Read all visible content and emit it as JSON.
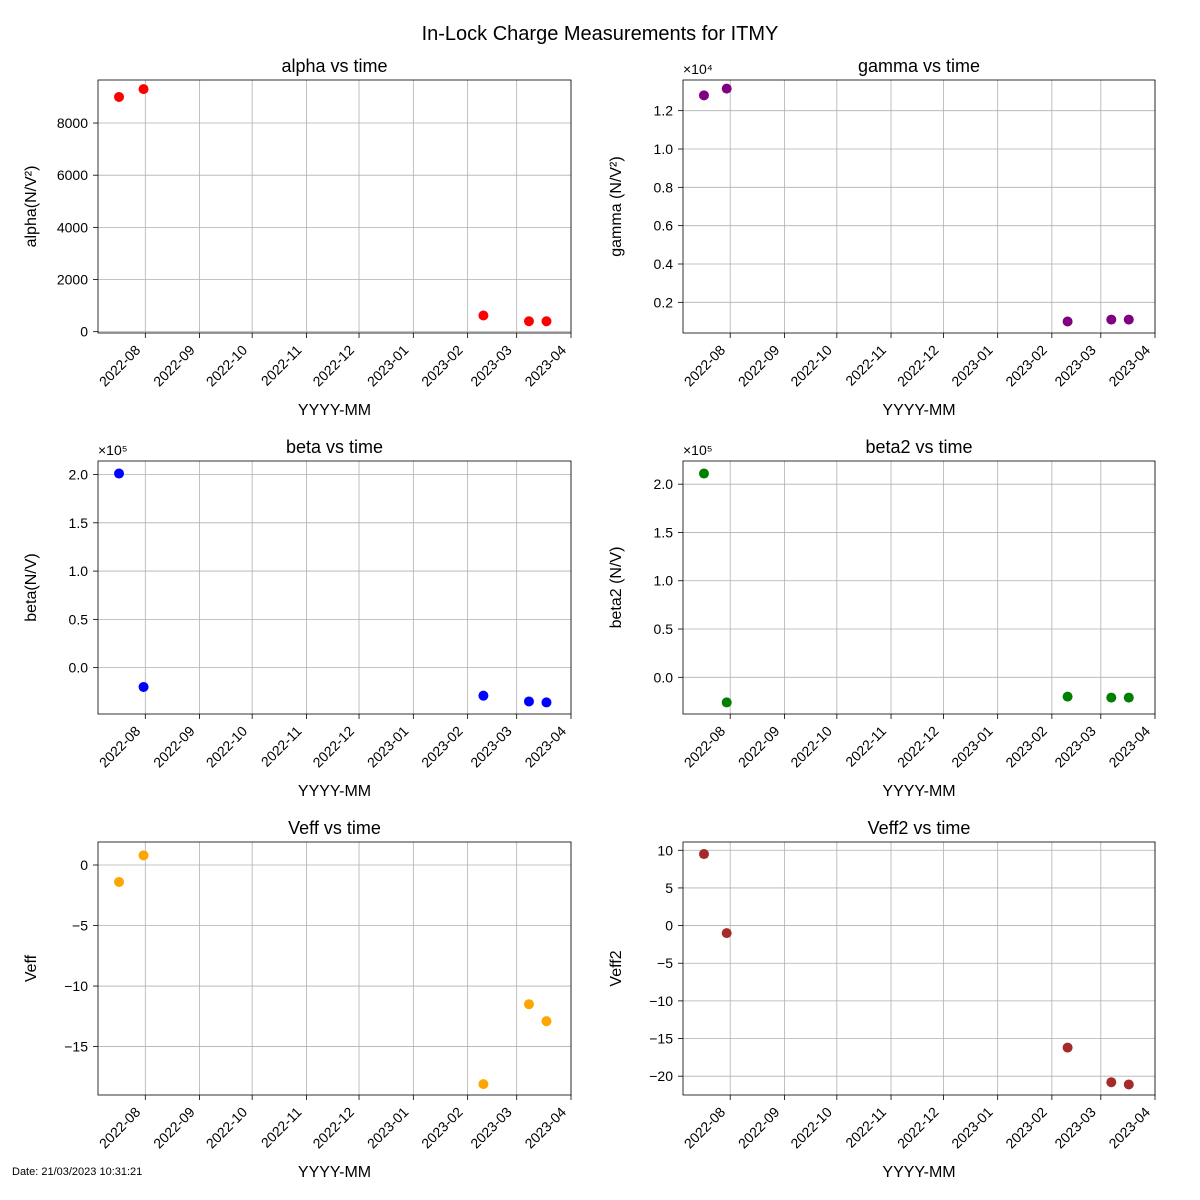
{
  "figure": {
    "title": "In-Lock Charge Measurements for ITMY",
    "date_stamp": "Date: 21/03/2023 10:31:21"
  },
  "chart_data": [
    {
      "type": "scatter",
      "title": "alpha vs time",
      "xlabel": "YYYY-MM",
      "ylabel": "alpha(N/V²)",
      "multiplier": "",
      "color": "#ff0000",
      "xlim": [
        "2022-07-05",
        "2023-04-01"
      ],
      "ylim": [
        -50,
        9650
      ],
      "yticks": [
        0,
        2000,
        4000,
        6000,
        8000
      ],
      "ytick_labels": [
        "0",
        "2000",
        "4000",
        "6000",
        "8000"
      ],
      "xticks": [
        "2022-08",
        "2022-09",
        "2022-10",
        "2022-11",
        "2022-12",
        "2023-01",
        "2023-02",
        "2023-03",
        "2023-04"
      ],
      "x": [
        "2022-07-17",
        "2022-07-31",
        "2023-02-10",
        "2023-03-08",
        "2023-03-18"
      ],
      "y": [
        9000,
        9300,
        620,
        400,
        400
      ]
    },
    {
      "type": "scatter",
      "title": "gamma vs time",
      "xlabel": "YYYY-MM",
      "ylabel": "gamma (N/V²)",
      "multiplier": "×10⁴",
      "color": "#800080",
      "xlim": [
        "2022-07-05",
        "2023-04-01"
      ],
      "ylim": [
        400,
        13600
      ],
      "yticks": [
        2000,
        4000,
        6000,
        8000,
        10000,
        12000
      ],
      "ytick_labels": [
        "0.2",
        "0.4",
        "0.6",
        "0.8",
        "1.0",
        "1.2"
      ],
      "xticks": [
        "2022-08",
        "2022-09",
        "2022-10",
        "2022-11",
        "2022-12",
        "2023-01",
        "2023-02",
        "2023-03",
        "2023-04"
      ],
      "x": [
        "2022-07-17",
        "2022-07-30",
        "2023-02-10",
        "2023-03-07",
        "2023-03-17"
      ],
      "y": [
        12800,
        13150,
        1000,
        1100,
        1100
      ]
    },
    {
      "type": "scatter",
      "title": "beta vs time",
      "xlabel": "YYYY-MM",
      "ylabel": "beta(N/V)",
      "multiplier": "×10⁵",
      "color": "#0000ff",
      "xlim": [
        "2022-07-05",
        "2023-04-01"
      ],
      "ylim": [
        -48000,
        214000
      ],
      "yticks": [
        0,
        50000,
        100000,
        150000,
        200000
      ],
      "ytick_labels": [
        "0.0",
        "0.5",
        "1.0",
        "1.5",
        "2.0"
      ],
      "xticks": [
        "2022-08",
        "2022-09",
        "2022-10",
        "2022-11",
        "2022-12",
        "2023-01",
        "2023-02",
        "2023-03",
        "2023-04"
      ],
      "x": [
        "2022-07-17",
        "2022-07-31",
        "2023-02-10",
        "2023-03-08",
        "2023-03-18"
      ],
      "y": [
        201000,
        -20000,
        -29000,
        -35000,
        -36000
      ]
    },
    {
      "type": "scatter",
      "title": "beta2 vs time",
      "xlabel": "YYYY-MM",
      "ylabel": "beta2 (N/V)",
      "multiplier": "×10⁵",
      "color": "#008000",
      "xlim": [
        "2022-07-05",
        "2023-04-01"
      ],
      "ylim": [
        -38000,
        224000
      ],
      "yticks": [
        0,
        50000,
        100000,
        150000,
        200000
      ],
      "ytick_labels": [
        "0.0",
        "0.5",
        "1.0",
        "1.5",
        "2.0"
      ],
      "xticks": [
        "2022-08",
        "2022-09",
        "2022-10",
        "2022-11",
        "2022-12",
        "2023-01",
        "2023-02",
        "2023-03",
        "2023-04"
      ],
      "x": [
        "2022-07-17",
        "2022-07-30",
        "2023-02-10",
        "2023-03-07",
        "2023-03-17"
      ],
      "y": [
        211000,
        -26000,
        -20000,
        -21000,
        -21000
      ]
    },
    {
      "type": "scatter",
      "title": "Veff vs time",
      "xlabel": "YYYY-MM",
      "ylabel": "Veff",
      "multiplier": "",
      "color": "#ffa500",
      "xlim": [
        "2022-07-05",
        "2023-04-01"
      ],
      "ylim": [
        -19,
        1.9
      ],
      "yticks": [
        0,
        -5,
        -10,
        -15
      ],
      "ytick_labels": [
        "0",
        "−5",
        "−10",
        "−15"
      ],
      "xticks": [
        "2022-08",
        "2022-09",
        "2022-10",
        "2022-11",
        "2022-12",
        "2023-01",
        "2023-02",
        "2023-03",
        "2023-04"
      ],
      "x": [
        "2022-07-17",
        "2022-07-31",
        "2023-02-10",
        "2023-03-08",
        "2023-03-18"
      ],
      "y": [
        -1.4,
        0.8,
        -18.1,
        -11.5,
        -12.9
      ]
    },
    {
      "type": "scatter",
      "title": "Veff2 vs time",
      "xlabel": "YYYY-MM",
      "ylabel": "Veff2",
      "multiplier": "",
      "color": "#a52a2a",
      "xlim": [
        "2022-07-05",
        "2023-04-01"
      ],
      "ylim": [
        -22.5,
        11.1
      ],
      "yticks": [
        10,
        5,
        0,
        -5,
        -10,
        -15,
        -20
      ],
      "ytick_labels": [
        "10",
        "5",
        "0",
        "−5",
        "−10",
        "−15",
        "−20"
      ],
      "xticks": [
        "2022-08",
        "2022-09",
        "2022-10",
        "2022-11",
        "2022-12",
        "2023-01",
        "2023-02",
        "2023-03",
        "2023-04"
      ],
      "x": [
        "2022-07-17",
        "2022-07-30",
        "2023-02-10",
        "2023-03-07",
        "2023-03-17"
      ],
      "y": [
        9.5,
        -1,
        -16.2,
        -20.8,
        -21.1
      ]
    }
  ]
}
